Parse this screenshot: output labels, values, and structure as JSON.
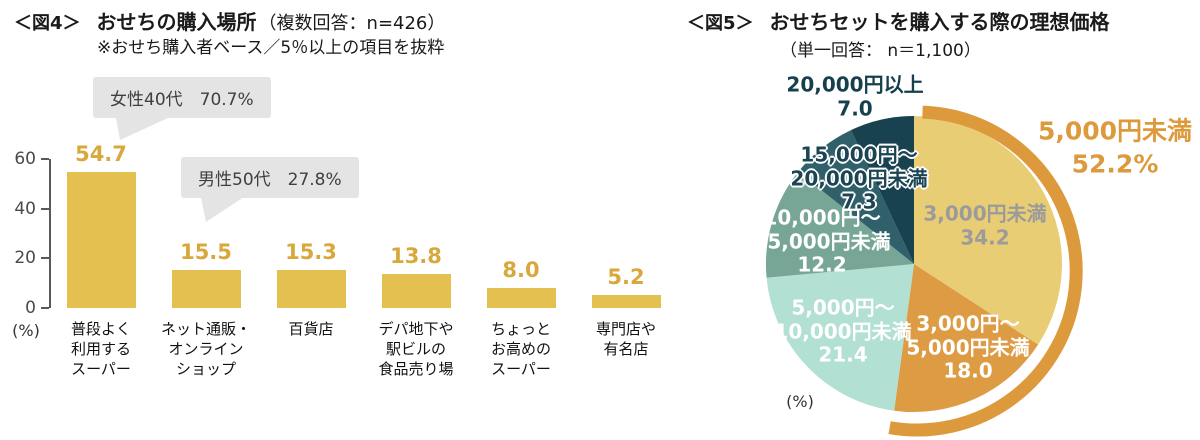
{
  "chart_data": [
    {
      "figure": "fig4",
      "type": "bar",
      "tag": "＜図4＞",
      "title": "おせちの購入場所",
      "note": "（複数回答：n=426）",
      "subtitle": "※おせち購入者ベース／5％以上の項目を抜粋",
      "unit": "(%)",
      "categories": [
        [
          "普段よく",
          "利用する",
          "スーパー"
        ],
        [
          "ネット通販・",
          "オンライン",
          "ショップ"
        ],
        [
          "百貨店"
        ],
        [
          "デパ地下や",
          "駅ビルの",
          "食品売り場"
        ],
        [
          "ちょっと",
          "お高めの",
          "スーパー"
        ],
        [
          "専門店や",
          "有名店"
        ]
      ],
      "values": [
        54.7,
        15.5,
        15.3,
        13.8,
        8.0,
        5.2
      ],
      "yticks": [
        0,
        20,
        40,
        60
      ],
      "ylim": [
        0,
        60
      ],
      "grid": false,
      "bar_color": "#e3c04f",
      "value_color": "#d8a93a",
      "axis_color": "#595959",
      "callouts": [
        {
          "text": "女性40代　70.7%"
        },
        {
          "text": "男性50代　27.8%"
        }
      ],
      "callout_bg": "#e4e4e4"
    },
    {
      "figure": "fig5",
      "type": "pie",
      "tag": "＜図5＞",
      "title": "おせちセットを購入する際の理想価格",
      "note": "（単一回答： n＝1,100）",
      "unit": "(%)",
      "start_angle_deg": 0,
      "direction": "clockwise",
      "slices": [
        {
          "label": "3,000円未満",
          "value": 34.2,
          "color": "#e9cd74",
          "text_color": "#9b9b9b",
          "halo": false,
          "label_lines": [
            "3,000円未満",
            "34.2"
          ]
        },
        {
          "label": "3,000円～5,000円未満",
          "value": 18.0,
          "color": "#dd9c44",
          "text_color": "#ffffff",
          "halo": false,
          "label_lines": [
            "3,000円～",
            "5,000円未満",
            "18.0"
          ]
        },
        {
          "label": "5,000円～10,000円未満",
          "value": 21.4,
          "color": "#b2e0d2",
          "text_color": "#ffffff",
          "halo": false,
          "label_lines": [
            "5,000円～",
            "10,000円未満",
            "21.4"
          ]
        },
        {
          "label": "10,000円～15,000円未満",
          "value": 12.2,
          "color": "#77a697",
          "text_color": "#ffffff",
          "halo": false,
          "label_lines": [
            "10,000円～",
            "15,000円未満",
            "12.2"
          ]
        },
        {
          "label": "15,000円～20,000円未満",
          "value": 7.3,
          "color": "#30616b",
          "text_color": "#1c4553",
          "halo": true,
          "label_lines": [
            "15,000円～",
            "20,000円未満",
            "7.3"
          ]
        },
        {
          "label": "20,000円以上",
          "value": 7.0,
          "color": "#18424f",
          "text_color": "#16404d",
          "halo": false,
          "label_lines": [
            "20,000円以上",
            "7.0"
          ]
        }
      ],
      "highlight": {
        "title": "5,000円未満",
        "value": "52.2%",
        "coverage_pct": 52.2,
        "color": "#dd9a3c"
      }
    }
  ]
}
